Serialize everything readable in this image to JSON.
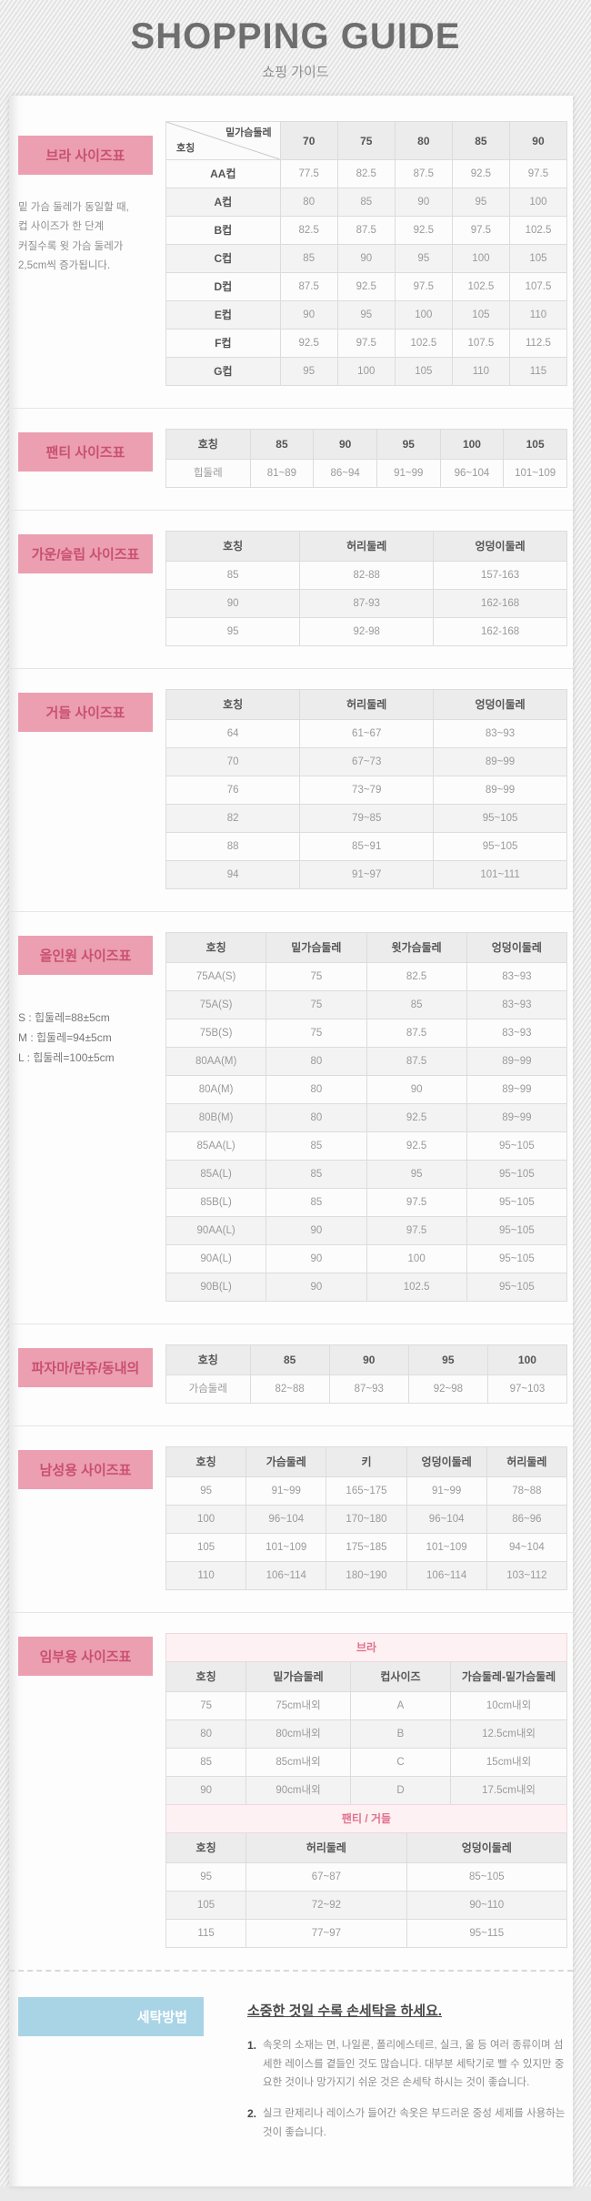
{
  "header": {
    "title": "SHOPPING GUIDE",
    "subtitle": "쇼핑 가이드"
  },
  "colors": {
    "label_pink_bg": "#eb9fb1",
    "label_pink_text": "#c9506e",
    "banner_pink_bg": "#fdf1f4",
    "banner_pink_text": "#e2708d",
    "label_blue_bg": "#a9d4e6",
    "table_header_bg": "#ececec"
  },
  "sections": [
    {
      "id": "bra",
      "label": "브라 사이즈표",
      "note": "밑 가슴 둘레가 동일할 때,\n컵 사이즈가 한 단계\n커질수록 윗 가슴 둘레가\n2,5cm씩 증가됩니다.",
      "tables": [
        {
          "name": "bra-size-table",
          "diagonal": {
            "top": "밑가슴둘레",
            "bottom": "호칭"
          },
          "columns": [
            "70",
            "75",
            "80",
            "85",
            "90"
          ],
          "widths": [
            "28.5%",
            "14.3%",
            "14.3%",
            "14.3%",
            "14.3%",
            "14.3%"
          ],
          "bold_first_col": true,
          "rows": [
            [
              "AA컵",
              "77.5",
              "82.5",
              "87.5",
              "92.5",
              "97.5"
            ],
            [
              "A컵",
              "80",
              "85",
              "90",
              "95",
              "100"
            ],
            [
              "B컵",
              "82.5",
              "87.5",
              "92.5",
              "97.5",
              "102.5"
            ],
            [
              "C컵",
              "85",
              "90",
              "95",
              "100",
              "105"
            ],
            [
              "D컵",
              "87.5",
              "92.5",
              "97.5",
              "102.5",
              "107.5"
            ],
            [
              "E컵",
              "90",
              "95",
              "100",
              "105",
              "110"
            ],
            [
              "F컵",
              "92.5",
              "97.5",
              "102.5",
              "107.5",
              "112.5"
            ],
            [
              "G컵",
              "95",
              "100",
              "105",
              "110",
              "115"
            ]
          ]
        }
      ]
    },
    {
      "id": "panty",
      "label": "팬티 사이즈표",
      "tables": [
        {
          "name": "panty-size-table",
          "columns": [
            "호칭",
            "85",
            "90",
            "95",
            "100",
            "105"
          ],
          "widths": [
            "21%",
            "15.8%",
            "15.8%",
            "15.8%",
            "15.8%",
            "15.8%"
          ],
          "rows": [
            [
              "힙둘레",
              "81~89",
              "86~94",
              "91~99",
              "96~104",
              "101~109"
            ]
          ]
        }
      ]
    },
    {
      "id": "gown",
      "label": "가운/슬립 사이즈표",
      "tables": [
        {
          "name": "gown-slip-size-table",
          "columns": [
            "호칭",
            "허리둘레",
            "엉덩이둘레"
          ],
          "widths": [
            "33.4%",
            "33.3%",
            "33.3%"
          ],
          "rows": [
            [
              "85",
              "82-88",
              "157-163"
            ],
            [
              "90",
              "87-93",
              "162-168"
            ],
            [
              "95",
              "92-98",
              "162-168"
            ]
          ]
        }
      ]
    },
    {
      "id": "girdle",
      "label": "거들 사이즈표",
      "tables": [
        {
          "name": "girdle-size-table",
          "columns": [
            "호칭",
            "허리둘레",
            "엉덩이둘레"
          ],
          "widths": [
            "33.4%",
            "33.3%",
            "33.3%"
          ],
          "rows": [
            [
              "64",
              "61~67",
              "83~93"
            ],
            [
              "70",
              "67~73",
              "89~99"
            ],
            [
              "76",
              "73~79",
              "89~99"
            ],
            [
              "82",
              "79~85",
              "95~105"
            ],
            [
              "88",
              "85~91",
              "95~105"
            ],
            [
              "94",
              "91~97",
              "101~111"
            ]
          ]
        }
      ]
    },
    {
      "id": "allinone",
      "label": "올인원 사이즈표",
      "note": "S : 힙둘레=88±5cm\nM : 힙둘레=94±5cm\nL : 힙둘레=100±5cm",
      "tables": [
        {
          "name": "all-in-one-size-table",
          "columns": [
            "호칭",
            "밑가슴둘레",
            "윗가슴둘레",
            "엉덩이둘레"
          ],
          "widths": [
            "25%",
            "25%",
            "25%",
            "25%"
          ],
          "rows": [
            [
              "75AA(S)",
              "75",
              "82.5",
              "83~93"
            ],
            [
              "75A(S)",
              "75",
              "85",
              "83~93"
            ],
            [
              "75B(S)",
              "75",
              "87.5",
              "83~93"
            ],
            [
              "80AA(M)",
              "80",
              "87.5",
              "89~99"
            ],
            [
              "80A(M)",
              "80",
              "90",
              "89~99"
            ],
            [
              "80B(M)",
              "80",
              "92.5",
              "89~99"
            ],
            [
              "85AA(L)",
              "85",
              "92.5",
              "95~105"
            ],
            [
              "85A(L)",
              "85",
              "95",
              "95~105"
            ],
            [
              "85B(L)",
              "85",
              "97.5",
              "95~105"
            ],
            [
              "90AA(L)",
              "90",
              "97.5",
              "95~105"
            ],
            [
              "90A(L)",
              "90",
              "100",
              "95~105"
            ],
            [
              "90B(L)",
              "90",
              "102.5",
              "95~105"
            ]
          ]
        }
      ]
    },
    {
      "id": "pajama",
      "label": "파자마/란쥬/동내의",
      "tables": [
        {
          "name": "pajama-size-table",
          "columns": [
            "호칭",
            "85",
            "90",
            "95",
            "100"
          ],
          "widths": [
            "21%",
            "19.75%",
            "19.75%",
            "19.75%",
            "19.75%"
          ],
          "rows": [
            [
              "가슴둘레",
              "82~88",
              "87~93",
              "92~98",
              "97~103"
            ]
          ]
        }
      ]
    },
    {
      "id": "men",
      "label": "남성용 사이즈표",
      "tables": [
        {
          "name": "men-size-table",
          "columns": [
            "호칭",
            "가슴둘레",
            "키",
            "엉덩이둘레",
            "허리둘레"
          ],
          "widths": [
            "20%",
            "20%",
            "20%",
            "20%",
            "20%"
          ],
          "rows": [
            [
              "95",
              "91~99",
              "165~175",
              "91~99",
              "78~88"
            ],
            [
              "100",
              "96~104",
              "170~180",
              "96~104",
              "86~96"
            ],
            [
              "105",
              "101~109",
              "175~185",
              "101~109",
              "94~104"
            ],
            [
              "110",
              "106~114",
              "180~190",
              "106~114",
              "103~112"
            ]
          ]
        }
      ]
    },
    {
      "id": "maternity",
      "label": "임부용 사이즈표",
      "tables": [
        {
          "name": "maternity-bra-size-table",
          "banner": "브라",
          "columns": [
            "호칭",
            "밑가슴둘레",
            "컵사이즈",
            "가슴둘레-밑가슴둘레"
          ],
          "widths": [
            "20%",
            "26%",
            "25%",
            "29%"
          ],
          "rows": [
            [
              "75",
              "75cm내외",
              "A",
              "10cm내외"
            ],
            [
              "80",
              "80cm내외",
              "B",
              "12.5cm내외"
            ],
            [
              "85",
              "85cm내외",
              "C",
              "15cm내외"
            ],
            [
              "90",
              "90cm내외",
              "D",
              "17.5cm내외"
            ]
          ]
        },
        {
          "name": "maternity-panty-girdle-size-table",
          "banner": "팬티 / 거들",
          "columns": [
            "호칭",
            "허리둘레",
            "엉덩이둘레"
          ],
          "widths": [
            "20%",
            "40%",
            "40%"
          ],
          "rows": [
            [
              "95",
              "67~87",
              "85~105"
            ],
            [
              "105",
              "72~92",
              "90~110"
            ],
            [
              "115",
              "77~97",
              "95~115"
            ]
          ]
        }
      ]
    }
  ],
  "washing": {
    "label": "세탁방법",
    "title": "소중한 것일 수록 손세탁을 하세요.",
    "items": [
      {
        "num": "1.",
        "text": "속옷의 소재는 면, 나일론, 폴리에스테르, 실크, 울 등 여러 종류이며 섬세한 레이스를 곁들인 것도 많습니다. 대부분 세탁기로 빨 수 있지만 중요한 것이나 망가지기 쉬운 것은 손세탁 하시는 것이 좋습니다."
      },
      {
        "num": "2.",
        "text": "실크 란제리나 레이스가 들어간 속옷은 부드러운 중성 세제를 사용하는 것이 좋습니다."
      }
    ]
  }
}
